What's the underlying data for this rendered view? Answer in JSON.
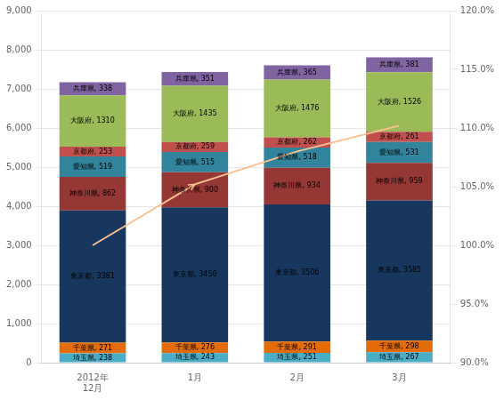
{
  "chart_data": {
    "type": "bar",
    "stacked": true,
    "grid": true,
    "data_labels": true,
    "categories": [
      "2012年\n12月",
      "1月",
      "2月",
      "3月"
    ],
    "series": [
      {
        "name": "埼玉県",
        "color": "#4bacc6",
        "values": [
          238,
          243,
          251,
          267
        ],
        "value_labels": [
          "埼玉県, 238",
          "埼玉県, 243",
          "埼玉県, 251",
          "埼玉県, 267"
        ]
      },
      {
        "name": "千葉県",
        "color": "#e36c09",
        "values": [
          271,
          276,
          291,
          298
        ],
        "value_labels": [
          "千葉県, 271",
          "千葉県, 276",
          "千葉県, 291",
          "千葉県, 298"
        ]
      },
      {
        "name": "東京都",
        "color": "#17375e",
        "values": [
          3381,
          3450,
          3506,
          3585
        ],
        "value_labels": [
          "東京都, 3381",
          "東京都, 3450",
          "東京都, 3506",
          "東京都, 3585"
        ]
      },
      {
        "name": "神奈川県",
        "color": "#953735",
        "values": [
          862,
          900,
          934,
          959
        ],
        "value_labels": [
          "神奈川県, 862",
          "神奈川県, 900",
          "神奈川県, 934",
          "神奈川県, 959"
        ]
      },
      {
        "name": "愛知県",
        "color": "#31849b",
        "values": [
          519,
          515,
          518,
          531
        ],
        "value_labels": [
          "愛知県, 519",
          "愛知県, 515",
          "愛知県, 518",
          "愛知県, 531"
        ]
      },
      {
        "name": "京都府",
        "color": "#c0504d",
        "values": [
          253,
          259,
          262,
          261
        ],
        "value_labels": [
          "京都府, 253",
          "京都府, 259",
          "京都府, 262",
          "京都府, 261"
        ]
      },
      {
        "name": "大阪府",
        "color": "#9bbb59",
        "values": [
          1310,
          1435,
          1476,
          1526
        ],
        "value_labels": [
          "大阪府, 1310",
          "大阪府, 1435",
          "大阪府, 1476",
          "大阪府, 1526"
        ]
      },
      {
        "name": "兵庫県",
        "color": "#8064a2",
        "values": [
          338,
          351,
          365,
          381
        ],
        "value_labels": [
          "兵庫県, 338",
          "兵庫県, 351",
          "兵庫県, 365",
          "兵庫県, 381"
        ]
      },
      {
        "type": "line",
        "axis": "y2",
        "color": "#fac090",
        "values": [
          100.0,
          105.2,
          108.0,
          110.2
        ]
      }
    ],
    "ylim": [
      0,
      9000
    ],
    "yticks": [
      0,
      {
        "value": 1000,
        "label": "1,000"
      },
      {
        "value": 2000,
        "label": "2,000"
      },
      {
        "value": 3000,
        "label": "3,000"
      },
      {
        "value": 4000,
        "label": "4,000"
      },
      {
        "value": 5000,
        "label": "5,000"
      },
      {
        "value": 6000,
        "label": "6,000"
      },
      {
        "value": 7000,
        "label": "7,000"
      },
      {
        "value": 8000,
        "label": "8,000"
      },
      {
        "value": 9000,
        "label": "9,000"
      }
    ],
    "y2lim": [
      90.0,
      120.0
    ],
    "y2ticks": [
      {
        "value": 90.0,
        "label": "90.0%"
      },
      {
        "value": 95.0,
        "label": "95.0%"
      },
      {
        "value": 100.0,
        "label": "100.0%"
      },
      {
        "value": 105.0,
        "label": "105.0%"
      },
      {
        "value": 110.0,
        "label": "110.0%"
      },
      {
        "value": 115.0,
        "label": "115.0%"
      },
      {
        "value": 120.0,
        "label": "120.0%"
      }
    ]
  }
}
